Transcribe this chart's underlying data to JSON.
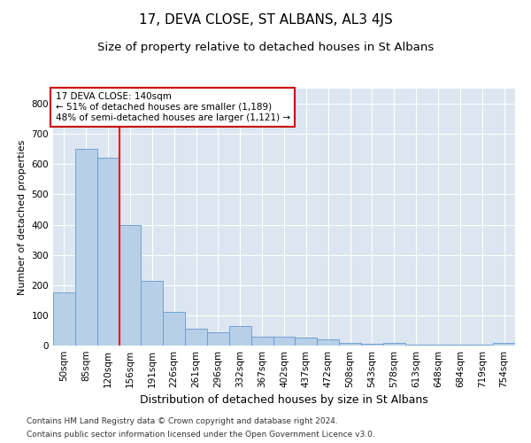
{
  "title": "17, DEVA CLOSE, ST ALBANS, AL3 4JS",
  "subtitle": "Size of property relative to detached houses in St Albans",
  "xlabel": "Distribution of detached houses by size in St Albans",
  "ylabel": "Number of detached properties",
  "categories": [
    "50sqm",
    "85sqm",
    "120sqm",
    "156sqm",
    "191sqm",
    "226sqm",
    "261sqm",
    "296sqm",
    "332sqm",
    "367sqm",
    "402sqm",
    "437sqm",
    "472sqm",
    "508sqm",
    "543sqm",
    "578sqm",
    "613sqm",
    "648sqm",
    "684sqm",
    "719sqm",
    "754sqm"
  ],
  "values": [
    175,
    650,
    620,
    400,
    215,
    110,
    55,
    45,
    65,
    30,
    30,
    25,
    20,
    8,
    5,
    8,
    2,
    2,
    2,
    2,
    8
  ],
  "bar_color": "#b8cfe8",
  "bar_edge_color": "#6699cc",
  "bg_color": "#dce6f0",
  "red_line_index": 2,
  "annotation_text": "17 DEVA CLOSE: 140sqm\n← 51% of detached houses are smaller (1,189)\n48% of semi-detached houses are larger (1,121) →",
  "annotation_box_color": "#ffffff",
  "annotation_box_edge": "#cc0000",
  "footnote_line1": "Contains HM Land Registry data © Crown copyright and database right 2024.",
  "footnote_line2": "Contains public sector information licensed under the Open Government Licence v3.0.",
  "ylim": [
    0,
    850
  ],
  "yticks": [
    0,
    100,
    200,
    300,
    400,
    500,
    600,
    700,
    800
  ],
  "title_fontsize": 11,
  "subtitle_fontsize": 9.5,
  "xlabel_fontsize": 9,
  "ylabel_fontsize": 8,
  "tick_fontsize": 7.5,
  "annot_fontsize": 7.5,
  "footnote_fontsize": 6.5
}
